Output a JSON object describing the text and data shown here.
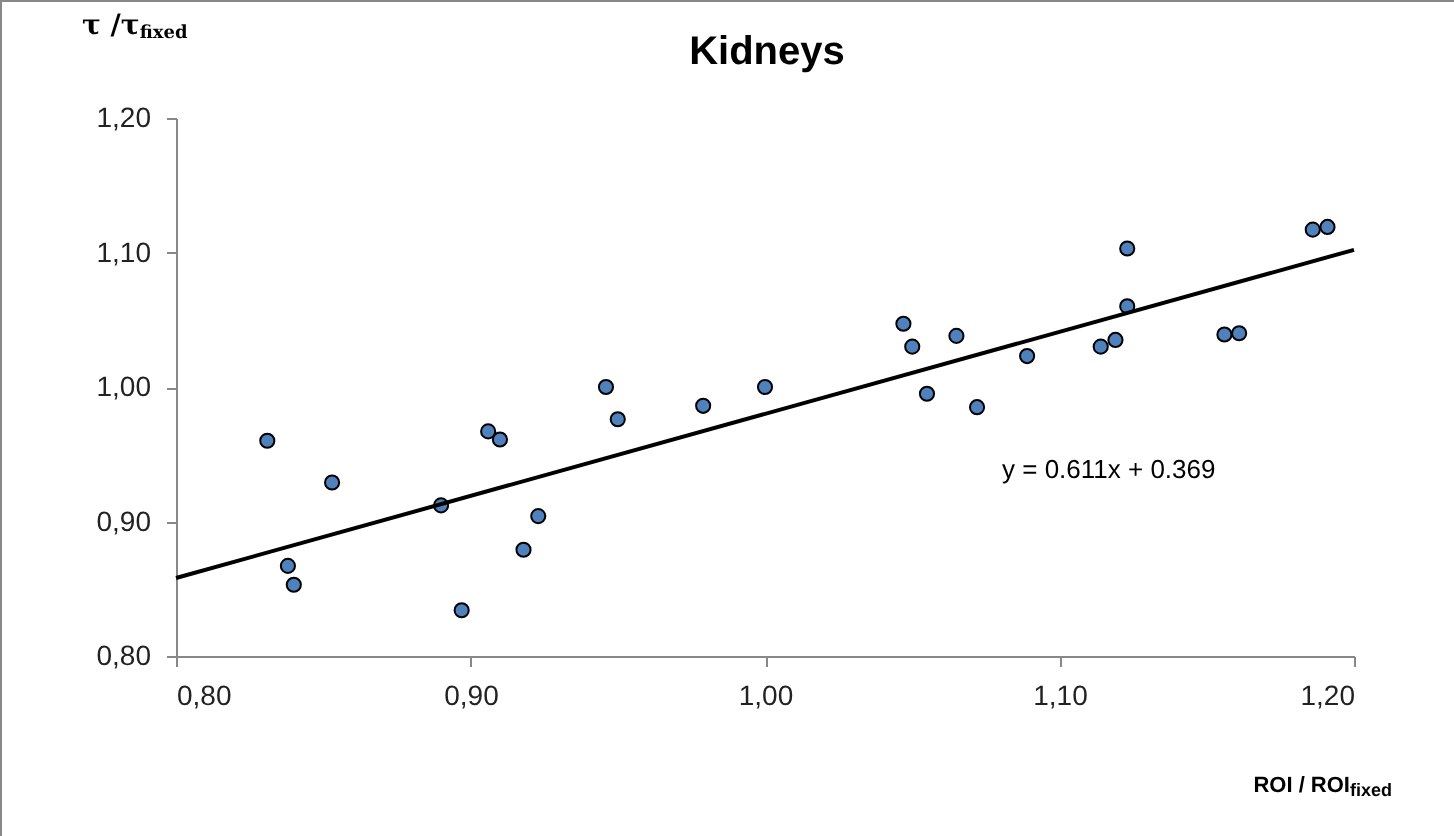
{
  "chart_data": {
    "type": "scatter",
    "title": "Kidneys",
    "xlabel": "ROI / ROI$_{fixed}$",
    "ylabel": "τ /τ$_{fixed}$",
    "annotations": [
      "y = 0.611x + 0.369"
    ],
    "xlim": [
      0.8,
      1.2
    ],
    "ylim": [
      0.8,
      1.2
    ],
    "xticks": [
      {
        "value": 0.8,
        "label": "0,80"
      },
      {
        "value": 0.9,
        "label": "0,90"
      },
      {
        "value": 1.0,
        "label": "1,00"
      },
      {
        "value": 1.1,
        "label": "1,10"
      },
      {
        "value": 1.2,
        "label": "1,20"
      }
    ],
    "yticks": [
      {
        "value": 0.8,
        "label": "0,80"
      },
      {
        "value": 0.9,
        "label": "0,90"
      },
      {
        "value": 1.0,
        "label": "1,00"
      },
      {
        "value": 1.1,
        "label": "1,10"
      },
      {
        "value": 1.2,
        "label": "1,20"
      }
    ],
    "grid": false,
    "marker": "circle",
    "series": [
      {
        "type": "scatter",
        "color": "#4f81bd",
        "x": [
          0.831,
          0.838,
          0.84,
          0.853,
          0.89,
          0.897,
          0.906,
          0.91,
          0.918,
          0.923,
          0.946,
          0.95,
          0.979,
          1.0,
          1.047,
          1.05,
          1.065,
          1.055,
          1.072,
          1.089,
          1.114,
          1.119,
          1.123,
          1.123,
          1.156,
          1.161,
          1.186,
          1.191
        ],
        "values": [
          0.96,
          0.867,
          0.853,
          0.929,
          0.912,
          0.834,
          0.967,
          0.961,
          0.879,
          0.904,
          1.0,
          0.976,
          0.986,
          1.0,
          1.047,
          1.03,
          1.038,
          0.995,
          0.985,
          1.023,
          1.03,
          1.035,
          1.103,
          1.06,
          1.039,
          1.04,
          1.117,
          1.119
        ]
      },
      {
        "type": "line",
        "color": "#000000",
        "marker": "none",
        "line_style": "solid",
        "x": [
          0.8,
          1.2
        ],
        "values": [
          0.858,
          1.102
        ]
      }
    ]
  }
}
